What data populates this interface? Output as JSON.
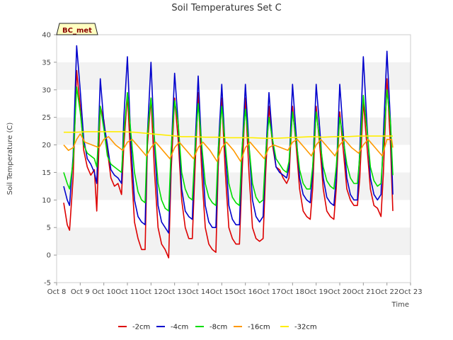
{
  "chart_data": {
    "type": "line",
    "title": "Soil Temperatures Set C",
    "xlabel": "Time",
    "ylabel": "Soil Temperature (C)",
    "badge": "BC_met",
    "xlim": [
      8,
      23
    ],
    "ylim": [
      -5,
      40
    ],
    "x_ticks": [
      8,
      9,
      10,
      11,
      12,
      13,
      14,
      15,
      16,
      17,
      18,
      19,
      20,
      21,
      22,
      23
    ],
    "x_tick_labels": [
      "Oct 8",
      "Oct 9",
      "Oct 10",
      "Oct 11",
      "Oct 12",
      "Oct 13",
      "Oct 14",
      "Oct 15",
      "Oct 16",
      "Oct 17",
      "Oct 18",
      "Oct 19",
      "Oct 20",
      "Oct 21",
      "Oct 22",
      "Oct 23"
    ],
    "y_ticks": [
      -5,
      0,
      5,
      10,
      15,
      20,
      25,
      30,
      35,
      40
    ],
    "grid": "horizontal bands",
    "legend_position": "bottom",
    "series": [
      {
        "name": "-2cm",
        "color": "#dd0000",
        "x": [
          8.3,
          8.45,
          8.55,
          8.7,
          8.85,
          9.0,
          9.15,
          9.3,
          9.45,
          9.6,
          9.7,
          9.85,
          10.0,
          10.15,
          10.3,
          10.45,
          10.6,
          10.75,
          10.85,
          11.0,
          11.15,
          11.3,
          11.45,
          11.6,
          11.75,
          11.85,
          12.0,
          12.15,
          12.3,
          12.45,
          12.6,
          12.75,
          12.85,
          13.0,
          13.15,
          13.3,
          13.45,
          13.6,
          13.75,
          13.85,
          14.0,
          14.15,
          14.3,
          14.45,
          14.6,
          14.75,
          14.85,
          15.0,
          15.15,
          15.3,
          15.45,
          15.6,
          15.75,
          15.85,
          16.0,
          16.15,
          16.3,
          16.45,
          16.6,
          16.75,
          16.85,
          17.0,
          17.15,
          17.3,
          17.45,
          17.6,
          17.75,
          17.85,
          18.0,
          18.15,
          18.3,
          18.45,
          18.6,
          18.75,
          18.85,
          19.0,
          19.15,
          19.3,
          19.45,
          19.6,
          19.75,
          19.85,
          20.0,
          20.15,
          20.3,
          20.45,
          20.6,
          20.75,
          20.85,
          21.0,
          21.15,
          21.3,
          21.45,
          21.6,
          21.75,
          21.85,
          22.0,
          22.15,
          22.25
        ],
        "y": [
          9.5,
          5.5,
          4.5,
          14,
          33.5,
          27,
          19,
          16,
          14.5,
          15.5,
          8,
          27,
          24.5,
          19,
          14,
          12.5,
          13,
          11,
          20,
          29,
          17,
          6,
          3,
          1,
          1,
          20,
          28.5,
          15,
          5,
          2,
          1,
          -0.5,
          15,
          28.5,
          21,
          10,
          5,
          3,
          3,
          14,
          29.5,
          15,
          5,
          2,
          1,
          0.5,
          16,
          28.5,
          15,
          5,
          3,
          2,
          2,
          14,
          28.5,
          15,
          5,
          3,
          2.5,
          3,
          14,
          27,
          20,
          16,
          15.5,
          14,
          13,
          14,
          27,
          20,
          12,
          8,
          7,
          6.5,
          12,
          27,
          20,
          12,
          8,
          7,
          6.5,
          12,
          26,
          19,
          12,
          10,
          9,
          9,
          14,
          28,
          20,
          12,
          9,
          8.5,
          7,
          15,
          32,
          20,
          8
        ]
      },
      {
        "name": "-4cm",
        "color": "#0000cc",
        "x": [
          8.3,
          8.45,
          8.55,
          8.7,
          8.85,
          9.0,
          9.15,
          9.3,
          9.45,
          9.6,
          9.7,
          9.85,
          10.0,
          10.15,
          10.3,
          10.45,
          10.6,
          10.75,
          10.85,
          11.0,
          11.15,
          11.3,
          11.45,
          11.6,
          11.75,
          11.85,
          12.0,
          12.15,
          12.3,
          12.45,
          12.6,
          12.75,
          12.85,
          13.0,
          13.15,
          13.3,
          13.45,
          13.6,
          13.75,
          13.85,
          14.0,
          14.15,
          14.3,
          14.45,
          14.6,
          14.75,
          14.85,
          15.0,
          15.15,
          15.3,
          15.45,
          15.6,
          15.75,
          15.85,
          16.0,
          16.15,
          16.3,
          16.45,
          16.6,
          16.75,
          16.85,
          17.0,
          17.15,
          17.3,
          17.45,
          17.6,
          17.75,
          17.85,
          18.0,
          18.15,
          18.3,
          18.45,
          18.6,
          18.75,
          18.85,
          19.0,
          19.15,
          19.3,
          19.45,
          19.6,
          19.75,
          19.85,
          20.0,
          20.15,
          20.3,
          20.45,
          20.6,
          20.75,
          20.85,
          21.0,
          21.15,
          21.3,
          21.45,
          21.6,
          21.75,
          21.85,
          22.0,
          22.15,
          22.25
        ],
        "y": [
          12.5,
          10,
          9,
          18,
          38,
          30,
          21,
          17.5,
          16.5,
          15,
          13,
          32,
          24,
          20,
          15.5,
          14.5,
          14,
          13,
          25,
          36,
          20,
          10,
          7,
          6,
          5.5,
          22,
          35,
          20,
          9,
          6,
          5,
          4,
          18,
          33,
          24,
          12,
          8,
          7,
          6.5,
          18,
          32.5,
          19,
          9,
          6,
          5,
          5,
          19,
          31,
          19,
          9,
          6.5,
          5.5,
          5.5,
          18,
          31,
          20,
          10,
          7,
          6,
          7,
          17,
          29.5,
          21,
          16,
          15,
          14.5,
          14,
          16,
          31,
          22,
          14,
          11,
          10,
          9.5,
          15,
          31,
          23,
          14,
          10.5,
          9.5,
          9,
          14,
          31,
          22,
          14,
          11,
          10,
          10,
          19,
          36,
          24,
          14,
          11,
          10,
          11,
          22,
          37,
          24,
          11
        ]
      },
      {
        "name": "-8cm",
        "color": "#00dd00",
        "x": [
          8.3,
          8.45,
          8.55,
          8.7,
          8.85,
          9.0,
          9.15,
          9.3,
          9.45,
          9.6,
          9.7,
          9.85,
          10.0,
          10.15,
          10.3,
          10.45,
          10.6,
          10.75,
          10.85,
          11.0,
          11.15,
          11.3,
          11.45,
          11.6,
          11.75,
          11.85,
          12.0,
          12.15,
          12.3,
          12.45,
          12.6,
          12.75,
          12.85,
          13.0,
          13.15,
          13.3,
          13.45,
          13.6,
          13.75,
          13.85,
          14.0,
          14.15,
          14.3,
          14.45,
          14.6,
          14.75,
          14.85,
          15.0,
          15.15,
          15.3,
          15.45,
          15.6,
          15.75,
          15.85,
          16.0,
          16.15,
          16.3,
          16.45,
          16.6,
          16.75,
          16.85,
          17.0,
          17.15,
          17.3,
          17.45,
          17.6,
          17.75,
          17.85,
          18.0,
          18.15,
          18.3,
          18.45,
          18.6,
          18.75,
          18.85,
          19.0,
          19.15,
          19.3,
          19.45,
          19.6,
          19.75,
          19.85,
          20.0,
          20.15,
          20.3,
          20.45,
          20.6,
          20.75,
          20.85,
          21.0,
          21.15,
          21.3,
          21.45,
          21.6,
          21.75,
          21.85,
          22.0,
          22.15,
          22.25
        ],
        "y": [
          15,
          13,
          12,
          17,
          30.5,
          26,
          20,
          18.5,
          18,
          17.5,
          16,
          27,
          23,
          18,
          16.5,
          16,
          15.5,
          15,
          22,
          29.5,
          22,
          15,
          11.5,
          10,
          9.5,
          22,
          28.5,
          21,
          13,
          10,
          8.5,
          8,
          19,
          28,
          24,
          15,
          12,
          10.5,
          10,
          18,
          27.5,
          20,
          13,
          10.5,
          9.5,
          9,
          19,
          27,
          20,
          13,
          10.5,
          9.5,
          9,
          19,
          26.5,
          20,
          13,
          10.5,
          9.5,
          10,
          18,
          25,
          21,
          17.5,
          16.5,
          15.5,
          15,
          17,
          26,
          21,
          15.5,
          13,
          12,
          12,
          16,
          26,
          21,
          16,
          13.5,
          12.5,
          12,
          16,
          25,
          21,
          16.5,
          14,
          13,
          13,
          18,
          29,
          23,
          16,
          13.5,
          12.5,
          13,
          20,
          30,
          24,
          14.5
        ]
      },
      {
        "name": "-16cm",
        "color": "#ff9900",
        "x": [
          8.3,
          8.5,
          8.7,
          8.85,
          9.0,
          9.2,
          9.5,
          9.8,
          10.0,
          10.2,
          10.5,
          10.8,
          11.0,
          11.2,
          11.5,
          11.8,
          12.0,
          12.2,
          12.5,
          12.8,
          13.0,
          13.2,
          13.5,
          13.8,
          14.0,
          14.2,
          14.5,
          14.8,
          15.0,
          15.2,
          15.5,
          15.8,
          16.0,
          16.2,
          16.5,
          16.8,
          17.0,
          17.2,
          17.5,
          17.8,
          18.0,
          18.2,
          18.5,
          18.8,
          19.0,
          19.2,
          19.5,
          19.8,
          20.0,
          20.2,
          20.5,
          20.8,
          21.0,
          21.2,
          21.5,
          21.8,
          22.0,
          22.2,
          22.25
        ],
        "y": [
          20,
          19,
          19.5,
          21,
          22,
          20.5,
          20,
          19.5,
          21,
          21.5,
          20,
          19,
          20.5,
          21,
          19.5,
          18,
          19.5,
          20.5,
          19,
          17.5,
          19.5,
          20.5,
          19,
          17.5,
          19.5,
          20.5,
          19,
          17,
          19.5,
          20.5,
          19,
          17,
          19.5,
          20.5,
          19,
          17.5,
          19.5,
          20,
          19.5,
          19,
          20.5,
          21,
          19.5,
          18,
          20,
          21,
          19.5,
          18,
          20,
          21,
          19.5,
          18.5,
          20,
          21,
          19.5,
          18,
          21,
          21,
          19.5
        ]
      },
      {
        "name": "-32cm",
        "color": "#ffee00",
        "x": [
          8.3,
          8.8,
          9.3,
          9.8,
          10.3,
          10.8,
          11.3,
          11.8,
          12.3,
          12.8,
          13.3,
          13.8,
          14.3,
          14.8,
          15.3,
          15.8,
          16.3,
          16.8,
          17.3,
          17.8,
          18.3,
          18.8,
          19.3,
          19.8,
          20.3,
          20.8,
          21.3,
          21.8,
          22.25
        ],
        "y": [
          22.3,
          22.3,
          22.4,
          22.4,
          22.4,
          22.4,
          22.3,
          22.1,
          21.9,
          21.7,
          21.5,
          21.5,
          21.4,
          21.4,
          21.3,
          21.3,
          21.3,
          21.2,
          21.2,
          21.3,
          21.4,
          21.5,
          21.4,
          21.5,
          21.5,
          21.6,
          21.6,
          21.6,
          21.6
        ]
      }
    ]
  }
}
